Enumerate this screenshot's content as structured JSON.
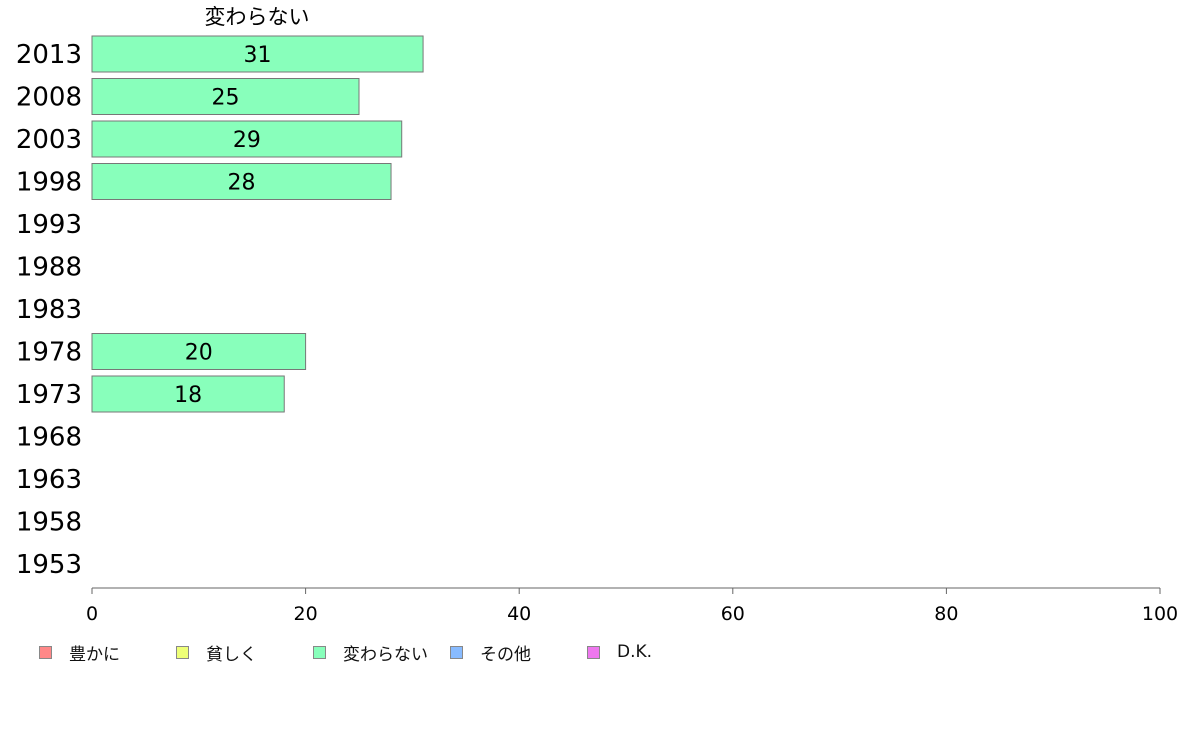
{
  "chart_data": {
    "type": "bar",
    "orientation": "horizontal",
    "title": "変わらない",
    "categories": [
      "2013",
      "2008",
      "2003",
      "1998",
      "1993",
      "1988",
      "1983",
      "1978",
      "1973",
      "1968",
      "1963",
      "1958",
      "1953"
    ],
    "series": [
      {
        "name": "変わらない",
        "color": "#88ffbb",
        "values": [
          31,
          25,
          29,
          28,
          null,
          null,
          null,
          20,
          18,
          null,
          null,
          null,
          null
        ]
      }
    ],
    "xlim": [
      0,
      100
    ],
    "xticks": [
      0,
      20,
      40,
      60,
      80,
      100
    ],
    "data_labels": true,
    "grid": false,
    "legend_position": "bottom-left",
    "legend": [
      {
        "label": "豊かに",
        "color": "#ff8888"
      },
      {
        "label": "貧しく",
        "color": "#eeff77"
      },
      {
        "label": "変わらない",
        "color": "#88ffbb"
      },
      {
        "label": "その他",
        "color": "#88bbff"
      },
      {
        "label": "D.K.",
        "color": "#ee77ee"
      }
    ]
  }
}
